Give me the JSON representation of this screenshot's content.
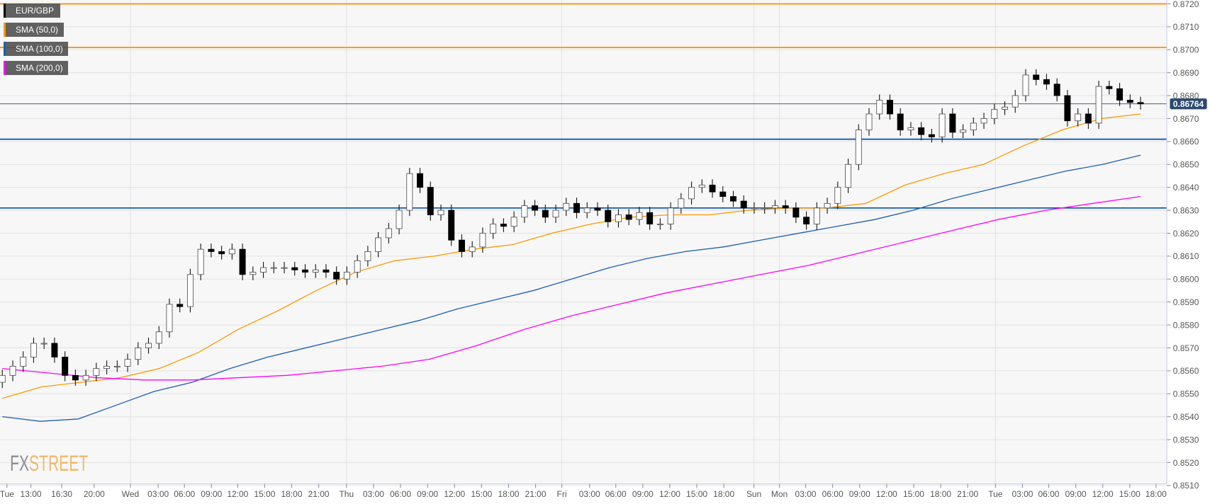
{
  "legend": [
    {
      "label": "EUR/GBP",
      "color": "#000000"
    },
    {
      "label": "SMA (50,0)",
      "color": "#ff9900"
    },
    {
      "label": "SMA (100,0)",
      "color": "#1a5fb4"
    },
    {
      "label": "SMA (200,0)",
      "color": "#ff00ff"
    }
  ],
  "watermark": {
    "part1": "FX",
    "part2": "STREET",
    "color1": "#8a8d94",
    "color2": "#f0b86a"
  },
  "chart_data": {
    "type": "candlestick",
    "ylim": [
      0.851,
      0.872
    ],
    "y_ticks": [
      "0.8720",
      "0.8710",
      "0.8700",
      "0.8690",
      "0.8680",
      "0.8670",
      "0.8660",
      "0.8650",
      "0.8640",
      "0.8630",
      "0.8620",
      "0.8610",
      "0.8600",
      "0.8590",
      "0.8580",
      "0.8570",
      "0.8560",
      "0.8550",
      "0.8540",
      "0.8530",
      "0.8520",
      "0.8510"
    ],
    "x_ticks": [
      "Tue",
      "13:00",
      "16:30",
      "20:00",
      "Wed",
      "03:00",
      "06:00",
      "09:00",
      "12:00",
      "15:00",
      "18:00",
      "21:00",
      "Thu",
      "03:00",
      "06:00",
      "09:00",
      "12:00",
      "15:00",
      "18:00",
      "21:00",
      "Fri",
      "03:00",
      "06:00",
      "09:00",
      "12:00",
      "15:00",
      "18:00",
      "Sun",
      "Mon",
      "03:00",
      "06:00",
      "09:00",
      "12:00",
      "15:00",
      "18:00",
      "21:00",
      "Tue",
      "03:00",
      "06:00",
      "09:00",
      "12:00",
      "15:00",
      "18:00"
    ],
    "grid": true,
    "current_price": {
      "label": "0.86764",
      "value": 0.86764,
      "color": "#2c4a6e"
    },
    "horizontal_levels": [
      {
        "value": 0.872,
        "color": "#ff8c00"
      },
      {
        "value": 0.8701,
        "color": "#ff8c00"
      },
      {
        "value": 0.8661,
        "color": "#0a4ea3"
      },
      {
        "value": 0.8631,
        "color": "#0a4ea3"
      }
    ],
    "closes": [
      0.8558,
      0.8562,
      0.8566,
      0.8572,
      0.8572,
      0.8566,
      0.8558,
      0.8556,
      0.8558,
      0.8561,
      0.8562,
      0.8562,
      0.8565,
      0.857,
      0.8572,
      0.8577,
      0.8589,
      0.8588,
      0.8602,
      0.8613,
      0.8612,
      0.8611,
      0.8613,
      0.8602,
      0.8603,
      0.8605,
      0.8605,
      0.8605,
      0.8604,
      0.8603,
      0.8604,
      0.8603,
      0.86,
      0.8603,
      0.8608,
      0.8612,
      0.8618,
      0.8622,
      0.863,
      0.8646,
      0.864,
      0.8628,
      0.863,
      0.8617,
      0.8612,
      0.8614,
      0.862,
      0.8624,
      0.8623,
      0.8627,
      0.8632,
      0.863,
      0.8627,
      0.863,
      0.8633,
      0.8629,
      0.8631,
      0.863,
      0.8625,
      0.8628,
      0.8626,
      0.8629,
      0.8624,
      0.8624,
      0.8631,
      0.8635,
      0.864,
      0.8641,
      0.8638,
      0.8636,
      0.8634,
      0.8631,
      0.8631,
      0.8631,
      0.8632,
      0.8631,
      0.8627,
      0.8624,
      0.8631,
      0.8633,
      0.864,
      0.865,
      0.8665,
      0.8672,
      0.8678,
      0.8672,
      0.8665,
      0.8666,
      0.8663,
      0.8662,
      0.8672,
      0.8664,
      0.8665,
      0.8668,
      0.867,
      0.8674,
      0.8675,
      0.868,
      0.8689,
      0.8687,
      0.8685,
      0.868,
      0.8669,
      0.8672,
      0.8668,
      0.8684,
      0.8683,
      0.8678,
      0.8677,
      0.86764
    ],
    "series": [
      {
        "name": "SMA (50,0)",
        "color": "#ff9900",
        "values": [
          0.8548,
          0.8553,
          0.8555,
          0.8557,
          0.8561,
          0.8568,
          0.8578,
          0.8586,
          0.8595,
          0.8603,
          0.8608,
          0.861,
          0.8613,
          0.8615,
          0.862,
          0.8624,
          0.8627,
          0.8628,
          0.8628,
          0.863,
          0.8631,
          0.8631,
          0.8633,
          0.8641,
          0.8646,
          0.865,
          0.8658,
          0.8665,
          0.867,
          0.8672
        ]
      },
      {
        "name": "SMA (100,0)",
        "color": "#1a5fb4",
        "values": [
          0.854,
          0.8538,
          0.8539,
          0.8545,
          0.8551,
          0.8555,
          0.8561,
          0.8566,
          0.857,
          0.8574,
          0.8578,
          0.8582,
          0.8587,
          0.8591,
          0.8595,
          0.86,
          0.8605,
          0.8609,
          0.8612,
          0.8614,
          0.8617,
          0.862,
          0.8623,
          0.8626,
          0.863,
          0.8635,
          0.8639,
          0.8643,
          0.8647,
          0.865,
          0.8654
        ]
      },
      {
        "name": "SMA (200,0)",
        "color": "#ff00ff",
        "values": [
          0.8561,
          0.8559,
          0.8557,
          0.8556,
          0.8556,
          0.8557,
          0.8558,
          0.856,
          0.8562,
          0.8565,
          0.8571,
          0.8578,
          0.8584,
          0.8589,
          0.8594,
          0.8598,
          0.8602,
          0.8606,
          0.8611,
          0.8616,
          0.8621,
          0.8626,
          0.863,
          0.8633,
          0.8636
        ]
      }
    ]
  }
}
